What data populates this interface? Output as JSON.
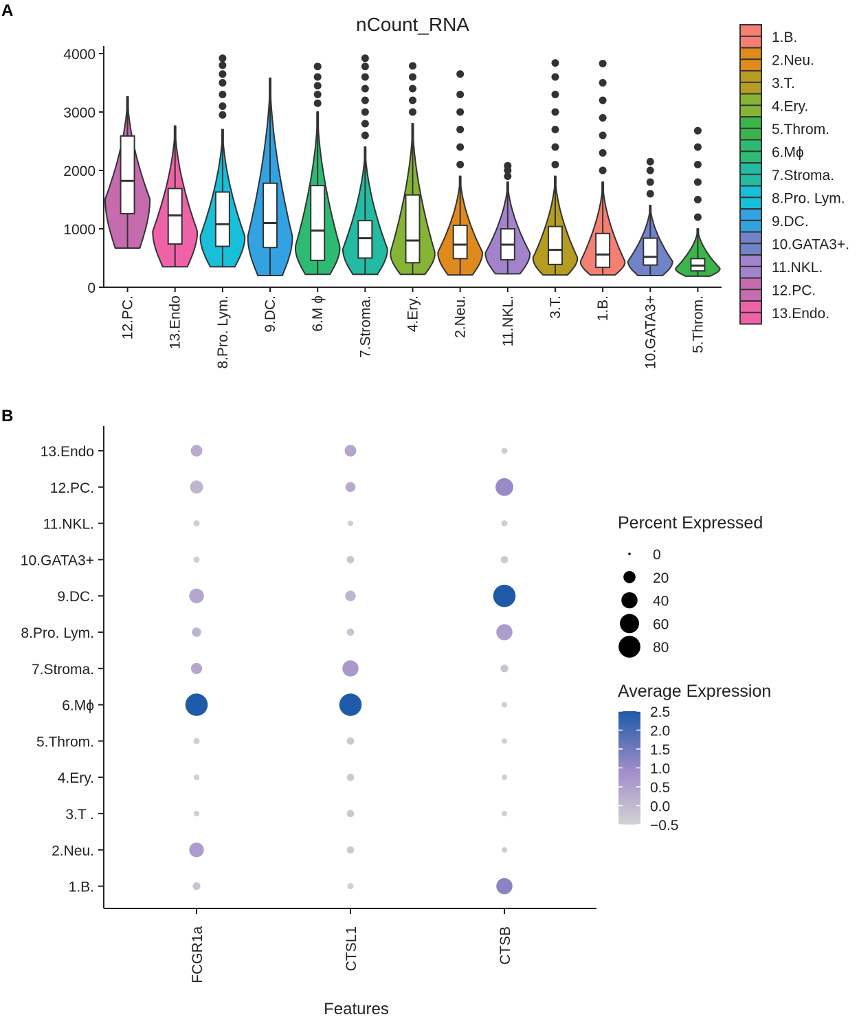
{
  "panels": {
    "a": "A",
    "b": "B"
  },
  "chart_data": [
    {
      "type": "violin",
      "title": "nCount_RNA",
      "xlabel": "",
      "ylabel": "",
      "ylim": [
        0,
        4000
      ],
      "y_ticks": [
        0,
        1000,
        2000,
        3000,
        4000
      ],
      "categories": [
        "12.PC.",
        "13.Endo",
        "8.Pro. Lym.",
        "9.DC.",
        "6.M ϕ",
        "7.Stroma.",
        "4.Ery.",
        "2.Neu.",
        "11.NKL.",
        "3.T.",
        "1.B.",
        "10.GATA3+",
        "5.Throm."
      ],
      "series": [
        {
          "name": "12.PC.",
          "color": "#C76BAF",
          "min": 670,
          "q1": 1260,
          "median": 1820,
          "q3": 2590,
          "max": 3260,
          "outliers": []
        },
        {
          "name": "13.Endo",
          "color": "#F062A8",
          "min": 350,
          "q1": 740,
          "median": 1230,
          "q3": 1690,
          "max": 2760,
          "outliers": []
        },
        {
          "name": "8.Pro. Lym.",
          "color": "#17BFD9",
          "min": 350,
          "q1": 700,
          "median": 1080,
          "q3": 1630,
          "max": 2700,
          "outliers": [
            2950,
            3100,
            3300,
            3500,
            3650,
            3800,
            3920
          ]
        },
        {
          "name": "9.DC.",
          "color": "#33A2E3",
          "min": 200,
          "q1": 680,
          "median": 1100,
          "q3": 1780,
          "max": 3580,
          "outliers": []
        },
        {
          "name": "6.M ϕ",
          "color": "#2DBA72",
          "min": 220,
          "q1": 460,
          "median": 970,
          "q3": 1740,
          "max": 3000,
          "outliers": [
            3150,
            3300,
            3450,
            3600,
            3780
          ]
        },
        {
          "name": "7.Stroma.",
          "color": "#23BBA2",
          "min": 220,
          "q1": 500,
          "median": 840,
          "q3": 1140,
          "max": 2400,
          "outliers": [
            2600,
            2800,
            3000,
            3200,
            3400,
            3600,
            3780,
            3920
          ]
        },
        {
          "name": "4.Ery.",
          "color": "#86B536",
          "min": 220,
          "q1": 420,
          "median": 800,
          "q3": 1580,
          "max": 2800,
          "outliers": [
            3000,
            3200,
            3400,
            3600,
            3790
          ]
        },
        {
          "name": "2.Neu.",
          "color": "#E08A1D",
          "min": 210,
          "q1": 490,
          "median": 730,
          "q3": 1060,
          "max": 1900,
          "outliers": [
            2100,
            2400,
            2700,
            3000,
            3300,
            3650
          ]
        },
        {
          "name": "11.NKL.",
          "color": "#A384CC",
          "min": 230,
          "q1": 470,
          "median": 730,
          "q3": 1000,
          "max": 1800,
          "outliers": [
            1900,
            2000,
            2080
          ]
        },
        {
          "name": "3.T.",
          "color": "#B69D22",
          "min": 210,
          "q1": 390,
          "median": 640,
          "q3": 1040,
          "max": 1900,
          "outliers": [
            2100,
            2400,
            2700,
            3000,
            3300,
            3600,
            3840
          ]
        },
        {
          "name": "1.B.",
          "color": "#F57F73",
          "min": 210,
          "q1": 340,
          "median": 560,
          "q3": 920,
          "max": 1800,
          "outliers": [
            2000,
            2300,
            2600,
            2900,
            3200,
            3500,
            3830
          ]
        },
        {
          "name": "10.GATA3+",
          "color": "#7183C9",
          "min": 200,
          "q1": 380,
          "median": 520,
          "q3": 840,
          "max": 1400,
          "outliers": [
            1600,
            1800,
            2000,
            2150
          ]
        },
        {
          "name": "5.Throm.",
          "color": "#3AB54A",
          "min": 190,
          "q1": 280,
          "median": 370,
          "q3": 490,
          "max": 1000,
          "outliers": [
            1200,
            1500,
            1800,
            2100,
            2400,
            2680
          ]
        }
      ],
      "legend": {
        "position": "right",
        "entries": [
          {
            "label": "1.B.",
            "color": "#F57F73"
          },
          {
            "label": "2.Neu.",
            "color": "#E08A1D"
          },
          {
            "label": "3.T.",
            "color": "#B69D22"
          },
          {
            "label": "4.Ery.",
            "color": "#86B536"
          },
          {
            "label": "5.Throm.",
            "color": "#3AB54A"
          },
          {
            "label": "6.Mϕ",
            "color": "#2DBA72"
          },
          {
            "label": "7.Stroma.",
            "color": "#23BBA2"
          },
          {
            "label": "8.Pro. Lym.",
            "color": "#17BFD9"
          },
          {
            "label": "9.DC.",
            "color": "#33A2E3"
          },
          {
            "label": "10.GATA3+.",
            "color": "#7183C9"
          },
          {
            "label": "11.NKL.",
            "color": "#A384CC"
          },
          {
            "label": "12.PC.",
            "color": "#C76BAF"
          },
          {
            "label": "13.Endo.",
            "color": "#F062A8"
          }
        ]
      }
    },
    {
      "type": "dot",
      "title": "",
      "xlabel": "Features",
      "ylabel": "",
      "features": [
        "FCGR1a",
        "CTSL1",
        "CTSB"
      ],
      "rows": [
        "13.Endo",
        "12.PC.",
        "11.NKL.",
        "10.GATA3+",
        "9.DC.",
        "8.Pro. Lym.",
        "7.Stroma.",
        "6.Mϕ",
        "5.Throm.",
        "4.Ery.",
        "3.T .",
        "2.Neu.",
        "1.B."
      ],
      "points": [
        {
          "row": "13.Endo",
          "feature": "FCGR1a",
          "pct": 18,
          "avg": 0.3
        },
        {
          "row": "13.Endo",
          "feature": "CTSL1",
          "pct": 18,
          "avg": 0.4
        },
        {
          "row": "13.Endo",
          "feature": "CTSB",
          "pct": 3,
          "avg": -0.4
        },
        {
          "row": "12.PC.",
          "feature": "FCGR1a",
          "pct": 24,
          "avg": 0.1
        },
        {
          "row": "12.PC.",
          "feature": "CTSL1",
          "pct": 12,
          "avg": 0.3
        },
        {
          "row": "12.PC.",
          "feature": "CTSB",
          "pct": 50,
          "avg": 1.0
        },
        {
          "row": "11.NKL.",
          "feature": "FCGR1a",
          "pct": 3,
          "avg": -0.4
        },
        {
          "row": "11.NKL.",
          "feature": "CTSL1",
          "pct": 2,
          "avg": -0.4
        },
        {
          "row": "11.NKL.",
          "feature": "CTSB",
          "pct": 3,
          "avg": -0.4
        },
        {
          "row": "10.GATA3+",
          "feature": "FCGR1a",
          "pct": 3,
          "avg": -0.4
        },
        {
          "row": "10.GATA3+",
          "feature": "CTSL1",
          "pct": 5,
          "avg": -0.2
        },
        {
          "row": "10.GATA3+",
          "feature": "CTSB",
          "pct": 5,
          "avg": -0.3
        },
        {
          "row": "9.DC.",
          "feature": "FCGR1a",
          "pct": 32,
          "avg": 0.4
        },
        {
          "row": "9.DC.",
          "feature": "CTSL1",
          "pct": 14,
          "avg": 0.1
        },
        {
          "row": "9.DC.",
          "feature": "CTSB",
          "pct": 85,
          "avg": 2.5
        },
        {
          "row": "8.Pro. Lym.",
          "feature": "FCGR1a",
          "pct": 10,
          "avg": 0.1
        },
        {
          "row": "8.Pro. Lym.",
          "feature": "CTSL1",
          "pct": 5,
          "avg": -0.2
        },
        {
          "row": "8.Pro. Lym.",
          "feature": "CTSB",
          "pct": 40,
          "avg": 0.6
        },
        {
          "row": "7.Stroma.",
          "feature": "FCGR1a",
          "pct": 16,
          "avg": 0.4
        },
        {
          "row": "7.Stroma.",
          "feature": "CTSL1",
          "pct": 40,
          "avg": 0.7
        },
        {
          "row": "7.Stroma.",
          "feature": "CTSB",
          "pct": 6,
          "avg": -0.2
        },
        {
          "row": "6.Mϕ",
          "feature": "FCGR1a",
          "pct": 85,
          "avg": 2.5
        },
        {
          "row": "6.Mϕ",
          "feature": "CTSL1",
          "pct": 85,
          "avg": 2.5
        },
        {
          "row": "6.Mϕ",
          "feature": "CTSB",
          "pct": 2,
          "avg": -0.4
        },
        {
          "row": "5.Throm.",
          "feature": "FCGR1a",
          "pct": 3,
          "avg": -0.4
        },
        {
          "row": "5.Throm.",
          "feature": "CTSL1",
          "pct": 5,
          "avg": -0.3
        },
        {
          "row": "5.Throm.",
          "feature": "CTSB",
          "pct": 2,
          "avg": -0.4
        },
        {
          "row": "4.Ery.",
          "feature": "FCGR1a",
          "pct": 2,
          "avg": -0.4
        },
        {
          "row": "4.Ery.",
          "feature": "CTSL1",
          "pct": 5,
          "avg": -0.3
        },
        {
          "row": "4.Ery.",
          "feature": "CTSB",
          "pct": 2,
          "avg": -0.4
        },
        {
          "row": "3.T .",
          "feature": "FCGR1a",
          "pct": 2,
          "avg": -0.4
        },
        {
          "row": "3.T .",
          "feature": "CTSL1",
          "pct": 5,
          "avg": -0.3
        },
        {
          "row": "3.T .",
          "feature": "CTSB",
          "pct": 2,
          "avg": -0.4
        },
        {
          "row": "2.Neu.",
          "feature": "FCGR1a",
          "pct": 32,
          "avg": 0.6
        },
        {
          "row": "2.Neu.",
          "feature": "CTSL1",
          "pct": 5,
          "avg": -0.3
        },
        {
          "row": "2.Neu.",
          "feature": "CTSB",
          "pct": 2,
          "avg": -0.4
        },
        {
          "row": "1.B.",
          "feature": "FCGR1a",
          "pct": 6,
          "avg": -0.2
        },
        {
          "row": "1.B.",
          "feature": "CTSL1",
          "pct": 3,
          "avg": -0.4
        },
        {
          "row": "1.B.",
          "feature": "CTSB",
          "pct": 40,
          "avg": 1.2
        }
      ],
      "size_legend": {
        "title": "Percent Expressed",
        "entries": [
          {
            "label": "0",
            "value": 0
          },
          {
            "label": "20",
            "value": 20
          },
          {
            "label": "40",
            "value": 40
          },
          {
            "label": "60",
            "value": 60
          },
          {
            "label": "80",
            "value": 80
          }
        ]
      },
      "color_legend": {
        "title": "Average Expression",
        "range": [
          -0.5,
          2.5
        ],
        "low_color": "#D3D3D3",
        "mid_color": "#A58FCB",
        "high_color": "#1F5AA8",
        "ticks": [
          {
            "label": "2.5",
            "value": 2.5
          },
          {
            "label": "2.0",
            "value": 2.0
          },
          {
            "label": "1.5",
            "value": 1.5
          },
          {
            "label": "1.0",
            "value": 1.0
          },
          {
            "label": "0.5",
            "value": 0.5
          },
          {
            "label": "0.0",
            "value": 0.0
          },
          {
            "label": "−0.5",
            "value": -0.5
          }
        ]
      }
    }
  ]
}
